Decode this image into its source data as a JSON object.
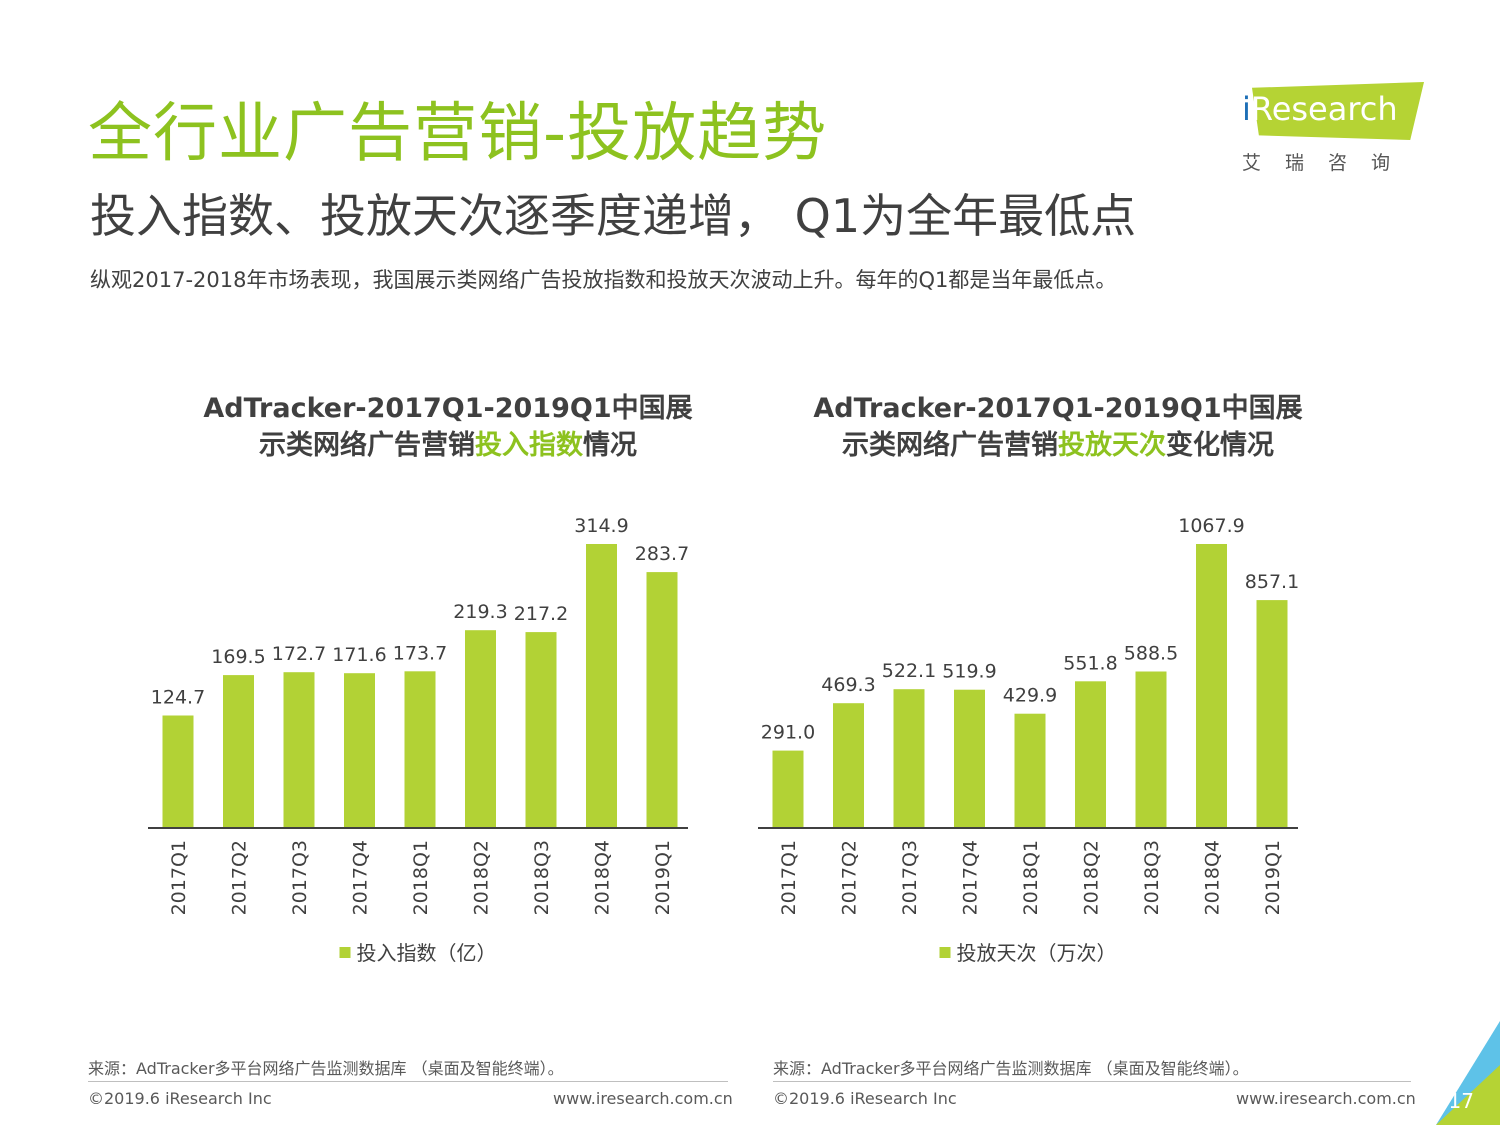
{
  "header": {
    "title": "全行业广告营销-投放趋势",
    "subtitle": "投入指数、投放天次逐季度递增， Q1为全年最低点",
    "intro": "纵观2017-2018年市场表现，我国展示类网络广告投放指数和投放天次波动上升。每年的Q1都是当年最低点。"
  },
  "logo": {
    "brand_prefix": "i",
    "brand_rest": "Research",
    "cn": "艾瑞咨询"
  },
  "colors": {
    "accent": "#8dc21f",
    "bar": "#b2d235",
    "text": "#404040"
  },
  "chart_data": [
    {
      "type": "bar",
      "title_line1": "AdTracker-2017Q1-2019Q1中国展",
      "title_line2_pre": "示类网络广告营销",
      "title_line2_hl": "投入指数",
      "title_line2_post": "情况",
      "categories": [
        "2017Q1",
        "2017Q2",
        "2017Q3",
        "2017Q4",
        "2018Q1",
        "2018Q2",
        "2018Q3",
        "2018Q4",
        "2019Q1"
      ],
      "values": [
        124.7,
        169.5,
        172.7,
        171.6,
        173.7,
        219.3,
        217.2,
        314.9,
        283.7
      ],
      "labels": [
        "124.7",
        "169.5",
        "172.7",
        "171.6",
        "173.7",
        "219.3",
        "217.2",
        "314.9",
        "283.7"
      ],
      "series_name": "投入指数（亿）",
      "ylim": [
        0,
        314.9
      ],
      "legend": "bottom"
    },
    {
      "type": "bar",
      "title_line1": "AdTracker-2017Q1-2019Q1中国展",
      "title_line2_pre": "示类网络广告营销",
      "title_line2_hl": "投放天次",
      "title_line2_post": "变化情况",
      "categories": [
        "2017Q1",
        "2017Q2",
        "2017Q3",
        "2017Q4",
        "2018Q1",
        "2018Q2",
        "2018Q3",
        "2018Q4",
        "2019Q1"
      ],
      "values": [
        291.0,
        469.3,
        522.1,
        519.9,
        429.9,
        551.8,
        588.5,
        1067.9,
        857.1
      ],
      "labels": [
        "291.0",
        "469.3",
        "522.1",
        "519.9",
        "429.9",
        "551.8",
        "588.5",
        "1067.9",
        "857.1"
      ],
      "series_name": "投放天次（万次）",
      "ylim": [
        0,
        1067.9
      ],
      "legend": "bottom"
    }
  ],
  "footer": {
    "source_left": "来源：AdTracker多平台网络广告监测数据库 （桌面及智能终端）。",
    "source_right": "来源：AdTracker多平台网络广告监测数据库 （桌面及智能终端）。",
    "copyright_left": "©2019.6 iResearch Inc",
    "copyright_right": "©2019.6 iResearch Inc",
    "url_left": "www.iresearch.com.cn",
    "url_right": "www.iresearch.com.cn",
    "page_number": "17"
  }
}
